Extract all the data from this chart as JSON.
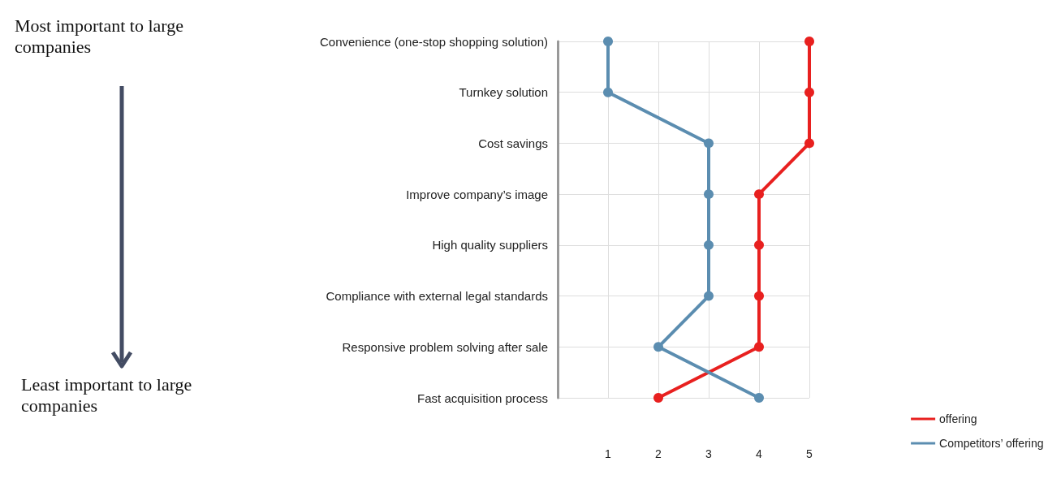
{
  "chart_data": {
    "type": "line",
    "orientation": "horizontal",
    "categories": [
      "Convenience (one-stop shopping solution)",
      "Turnkey solution",
      "Cost savings",
      "Improve company’s image",
      "High quality suppliers",
      "Compliance with external legal standards",
      "Responsive problem solving after sale",
      "Fast acquisition process"
    ],
    "series": [
      {
        "name": "offering",
        "color": "#e8201f",
        "values": [
          5,
          5,
          5,
          4,
          4,
          4,
          4,
          2
        ]
      },
      {
        "name": "Competitors’ offering",
        "color": "#5b8db0",
        "values": [
          1,
          1,
          3,
          3,
          3,
          3,
          2,
          4
        ]
      }
    ],
    "xlim": [
      0,
      5
    ],
    "xticks": [
      {
        "value": 0,
        "label": null
      },
      1,
      2,
      3,
      4,
      5
    ],
    "grid": true,
    "legend": "bottom right",
    "marker": "circle",
    "line_style": "solid",
    "annotations": [
      "Most important to large companies",
      "Least important to large companies"
    ]
  }
}
